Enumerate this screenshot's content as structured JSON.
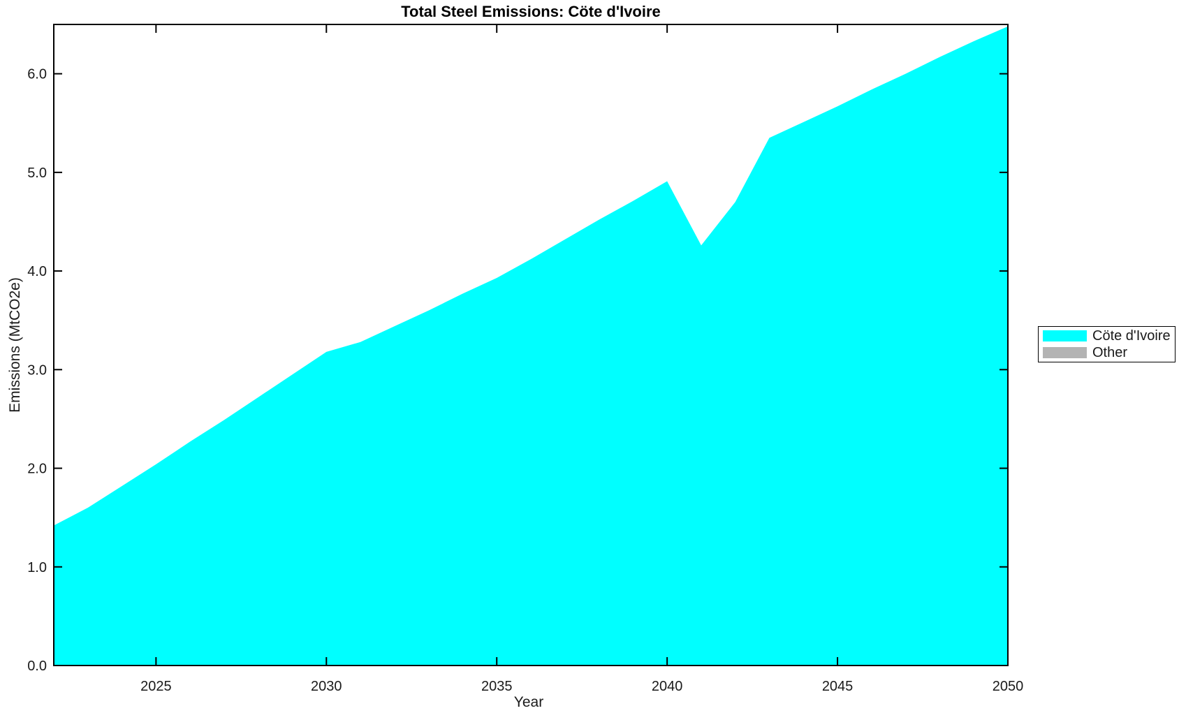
{
  "figure": {
    "title": "Total Steel Emissions: Cöte d'Ivoire",
    "xlabel": "Year",
    "ylabel": "Emissions (MtCO2e)"
  },
  "legend": {
    "position": "right-outside",
    "entries": [
      {
        "label": "Cöte d'Ivoire",
        "color": "#00FFFF"
      },
      {
        "label": "Other",
        "color": "#B3B3B3"
      }
    ]
  },
  "chart_data": {
    "type": "area",
    "title": "Total Steel Emissions: Cöte d'Ivoire",
    "xlabel": "Year",
    "ylabel": "Emissions (MtCO2e)",
    "xlim": [
      2022,
      2050
    ],
    "ylim": [
      0,
      6.5
    ],
    "grid": false,
    "background": "#ffffff",
    "axis_color": "#000000",
    "x_tick_labels": [
      "2025",
      "2030",
      "2035",
      "2040",
      "2045",
      "2050"
    ],
    "y_tick_labels": [
      "0.0",
      "1.0",
      "2.0",
      "3.0",
      "4.0",
      "5.0",
      "6.0"
    ],
    "series": [
      {
        "name": "Cöte d'Ivoire",
        "color": "#00FFFF",
        "x": [
          2022,
          2023,
          2024,
          2025,
          2026,
          2027,
          2028,
          2029,
          2030,
          2031,
          2032,
          2033,
          2034,
          2035,
          2036,
          2037,
          2038,
          2039,
          2040,
          2041,
          2042,
          2043,
          2044,
          2045,
          2046,
          2047,
          2048,
          2049,
          2050
        ],
        "values": [
          1.42,
          1.6,
          1.82,
          2.04,
          2.27,
          2.49,
          2.72,
          2.95,
          3.18,
          3.28,
          3.44,
          3.6,
          3.77,
          3.93,
          4.12,
          4.32,
          4.52,
          4.71,
          4.91,
          4.26,
          4.7,
          5.35,
          5.51,
          5.67,
          5.84,
          6.0,
          6.17,
          6.33,
          6.48
        ]
      },
      {
        "name": "Other",
        "color": "#B3B3B3",
        "x": [],
        "values": []
      }
    ]
  }
}
